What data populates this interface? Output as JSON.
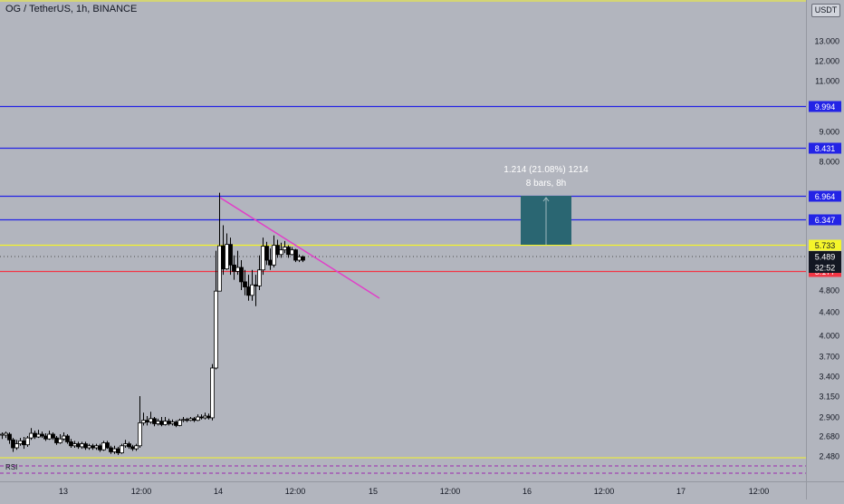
{
  "header": {
    "title": "OG / TetherUS, 1h, BINANCE",
    "currency": "USDT"
  },
  "indicator": {
    "rsi_label": "RSI"
  },
  "price_axis": {
    "ticks": [
      "13.000",
      "12.000",
      "11.000",
      "9.000",
      "8.000",
      "4.800",
      "4.400",
      "4.000",
      "3.700",
      "3.400",
      "3.150",
      "2.900",
      "2.680",
      "2.480"
    ]
  },
  "time_axis": {
    "ticks": [
      "13",
      "12:00",
      "14",
      "12:00",
      "15",
      "12:00",
      "16",
      "12:00",
      "17",
      "12:00"
    ]
  },
  "levels": [
    {
      "value": "9.994",
      "color": "#2323e6"
    },
    {
      "value": "8.431",
      "color": "#2323e6"
    },
    {
      "value": "6.964",
      "color": "#2323e6"
    },
    {
      "value": "6.347",
      "color": "#2323e6"
    },
    {
      "value": "5.733",
      "color": "#f5f52a"
    },
    {
      "value": "5.177",
      "color": "#f23645"
    }
  ],
  "last_price": {
    "value": "5.489",
    "countdown": "32:52"
  },
  "measure": {
    "line1": "1.214 (21.08%) 1214",
    "line2": "8 bars, 8h"
  },
  "colors": {
    "trendline": "#e040c8",
    "candle": "#000000",
    "measure_fill": "#2a6672"
  }
}
